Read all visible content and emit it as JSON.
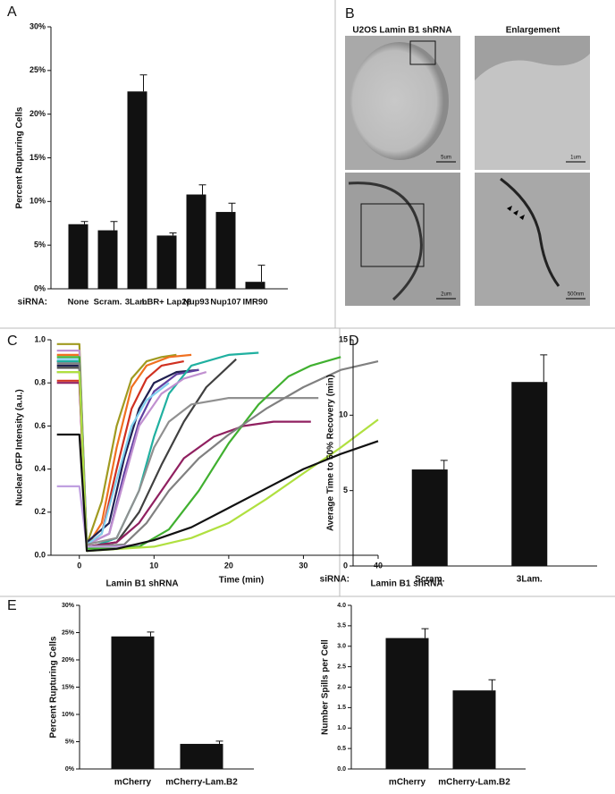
{
  "chart_data": [
    {
      "type": "bar",
      "panel": "A",
      "y_label": "Percent Rupturing Cells",
      "x_prefix": "siRNA:",
      "categories": [
        "None",
        "Scram.",
        "3Lam.",
        "LBR+ Lap2β",
        "Nup93",
        "Nup107",
        "IMR90"
      ],
      "values": [
        7.4,
        6.7,
        22.6,
        6.1,
        10.8,
        8.8,
        0.8
      ],
      "errors": [
        0.3,
        1.0,
        1.9,
        0.3,
        1.1,
        1.0,
        1.9
      ],
      "color": "#111111",
      "ylim": [
        0,
        30
      ],
      "yticks": [
        {
          "value": 0,
          "label": "0%"
        },
        {
          "value": 5,
          "label": "5%"
        },
        {
          "value": 10,
          "label": "10%"
        },
        {
          "value": 15,
          "label": "15%"
        },
        {
          "value": 20,
          "label": "20%"
        },
        {
          "value": 25,
          "label": "25%"
        },
        {
          "value": 30,
          "label": "30%"
        }
      ]
    },
    {
      "type": "line",
      "panel": "C",
      "x_label": "Time (min)",
      "y_label": "Nuclear GFP Intensity (a.u.)",
      "xlim": [
        -3.8,
        40
      ],
      "xticks": [
        0,
        10,
        20,
        30,
        40
      ],
      "ylim": [
        0,
        1
      ],
      "yticks": [
        {
          "value": 0,
          "label": "0.0"
        },
        {
          "value": 0.2,
          "label": "0.2"
        },
        {
          "value": 0.4,
          "label": "0.4"
        },
        {
          "value": 0.6,
          "label": "0.6"
        },
        {
          "value": 0.8,
          "label": "0.8"
        },
        {
          "value": 1,
          "label": "1.0"
        }
      ],
      "series": [
        {
          "color": "#a09a20",
          "x": [
            -3,
            0,
            1,
            3,
            5,
            7,
            9,
            11,
            13
          ],
          "values": [
            0.98,
            0.98,
            0.05,
            0.25,
            0.6,
            0.82,
            0.9,
            0.92,
            0.93
          ]
        },
        {
          "color": "#f07020",
          "x": [
            -3,
            0,
            1,
            3,
            5,
            7,
            9,
            12,
            15
          ],
          "values": [
            0.93,
            0.93,
            0.04,
            0.15,
            0.5,
            0.78,
            0.88,
            0.92,
            0.93
          ]
        },
        {
          "color": "#d03020",
          "x": [
            -3,
            0,
            1,
            3,
            5,
            7,
            9,
            11,
            14
          ],
          "values": [
            0.81,
            0.81,
            0.05,
            0.1,
            0.4,
            0.68,
            0.82,
            0.88,
            0.9
          ]
        },
        {
          "color": "#202050",
          "x": [
            -3,
            0,
            1,
            4,
            6,
            8,
            10,
            13,
            16
          ],
          "values": [
            0.88,
            0.88,
            0.06,
            0.15,
            0.45,
            0.68,
            0.8,
            0.85,
            0.86
          ]
        },
        {
          "color": "#6040a0",
          "x": [
            -3,
            0,
            1,
            4,
            6,
            8,
            10,
            13,
            16
          ],
          "values": [
            0.9,
            0.9,
            0.05,
            0.1,
            0.38,
            0.62,
            0.76,
            0.84,
            0.86
          ]
        },
        {
          "color": "#20b0a0",
          "x": [
            -3,
            0,
            1,
            5,
            8,
            10,
            12,
            15,
            20,
            24
          ],
          "values": [
            0.9,
            0.9,
            0.03,
            0.08,
            0.3,
            0.55,
            0.75,
            0.88,
            0.93,
            0.94
          ]
        },
        {
          "color": "#c090d0",
          "x": [
            -3,
            0,
            1,
            4,
            6,
            8,
            11,
            14,
            17
          ],
          "values": [
            0.95,
            0.95,
            0.05,
            0.1,
            0.35,
            0.6,
            0.75,
            0.82,
            0.85
          ]
        },
        {
          "color": "#80d0f0",
          "x": [
            -3,
            0,
            1,
            3,
            5,
            7,
            9,
            12
          ],
          "values": [
            0.91,
            0.91,
            0.05,
            0.1,
            0.35,
            0.6,
            0.72,
            0.8
          ]
        },
        {
          "color": "#404040",
          "x": [
            -3,
            0,
            1,
            5,
            8,
            11,
            14,
            17,
            21
          ],
          "values": [
            0.87,
            0.87,
            0.04,
            0.06,
            0.2,
            0.42,
            0.62,
            0.78,
            0.91
          ]
        },
        {
          "color": "#909090",
          "x": [
            -3,
            0,
            1,
            5,
            8,
            10,
            12,
            15,
            20,
            25,
            32
          ],
          "values": [
            0.85,
            0.85,
            0.05,
            0.08,
            0.3,
            0.5,
            0.62,
            0.7,
            0.73,
            0.73,
            0.73
          ]
        },
        {
          "color": "#902060",
          "x": [
            -3,
            0,
            1,
            5,
            8,
            11,
            14,
            18,
            22,
            26,
            31
          ],
          "values": [
            0.8,
            0.8,
            0.04,
            0.06,
            0.15,
            0.3,
            0.45,
            0.55,
            0.6,
            0.62,
            0.62
          ]
        },
        {
          "color": "#40b030",
          "x": [
            -3,
            0,
            1,
            8,
            12,
            16,
            20,
            24,
            28,
            31,
            35
          ],
          "values": [
            0.92,
            0.92,
            0.03,
            0.04,
            0.12,
            0.3,
            0.52,
            0.7,
            0.83,
            0.88,
            0.92
          ]
        },
        {
          "color": "#808080",
          "x": [
            -3,
            0,
            1,
            6,
            9,
            12,
            16,
            20,
            25,
            30,
            35,
            40
          ],
          "values": [
            0.89,
            0.89,
            0.04,
            0.05,
            0.15,
            0.3,
            0.45,
            0.56,
            0.68,
            0.78,
            0.86,
            0.9
          ]
        },
        {
          "color": "#c0a0e0",
          "x": [
            -3,
            0,
            1,
            5,
            8
          ],
          "values": [
            0.32,
            0.32,
            0.04,
            0.04,
            0.05
          ]
        },
        {
          "color": "#b0e040",
          "x": [
            -3,
            0,
            1,
            10,
            15,
            20,
            25,
            30,
            35,
            40
          ],
          "values": [
            0.85,
            0.85,
            0.02,
            0.04,
            0.08,
            0.15,
            0.26,
            0.38,
            0.5,
            0.63
          ]
        },
        {
          "color": "#111111",
          "x": [
            -3,
            0,
            1,
            5,
            10,
            15,
            20,
            25,
            30,
            35,
            40
          ],
          "values": [
            0.56,
            0.56,
            0.02,
            0.03,
            0.07,
            0.13,
            0.22,
            0.31,
            0.4,
            0.47,
            0.53
          ]
        }
      ]
    },
    {
      "type": "bar",
      "panel": "D",
      "y_label": "Average Time to 50% Recovery (min)",
      "x_prefix": "siRNA:",
      "categories": [
        "Scram.",
        "3Lam."
      ],
      "values": [
        6.4,
        12.2
      ],
      "errors": [
        0.6,
        1.8
      ],
      "color": "#111111",
      "ylim": [
        0,
        15
      ],
      "yticks": [
        0,
        5,
        10,
        15
      ]
    },
    {
      "type": "bar",
      "panel": "E",
      "title": "Lamin B1 shRNA",
      "y_label": "Percent Rupturing Cells",
      "categories": [
        "mCherry",
        "mCherry-Lam.B2"
      ],
      "values": [
        24.3,
        4.6
      ],
      "errors": [
        0.8,
        0.5
      ],
      "color": "#111111",
      "ylim": [
        0,
        30
      ],
      "yticks": [
        {
          "value": 0,
          "label": "0%"
        },
        {
          "value": 5,
          "label": "5%"
        },
        {
          "value": 10,
          "label": "10%"
        },
        {
          "value": 15,
          "label": "15%"
        },
        {
          "value": 20,
          "label": "20%"
        },
        {
          "value": 25,
          "label": "25%"
        },
        {
          "value": 30,
          "label": "30%"
        }
      ]
    },
    {
      "type": "bar",
      "title": "Lamin B1 shRNA",
      "y_label": "Number Spills per Cell",
      "categories": [
        "mCherry",
        "mCherry-Lam.B2"
      ],
      "values": [
        3.2,
        1.92
      ],
      "errors": [
        0.23,
        0.26
      ],
      "color": "#111111",
      "ylim": [
        0,
        4
      ],
      "yticks": [
        {
          "value": 0,
          "label": "0.0"
        },
        {
          "value": 0.5,
          "label": "0.5"
        },
        {
          "value": 1,
          "label": "1.0"
        },
        {
          "value": 1.5,
          "label": "1.5"
        },
        {
          "value": 2,
          "label": "2.0"
        },
        {
          "value": 2.5,
          "label": "2.5"
        },
        {
          "value": 3,
          "label": "3.0"
        },
        {
          "value": 3.5,
          "label": "3.5"
        },
        {
          "value": 4,
          "label": "4.0"
        }
      ]
    }
  ],
  "micrographs": {
    "panel": "B",
    "column_titles": [
      "U2OS Lamin B1 shRNA",
      "Enlargement"
    ],
    "scale_bars": [
      "5um",
      "1um",
      "2um",
      "500nm"
    ]
  }
}
